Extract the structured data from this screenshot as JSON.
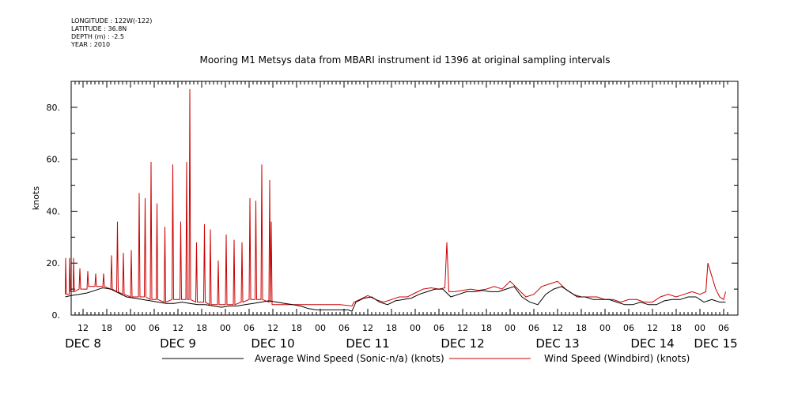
{
  "meta": {
    "longitude": "LONGITUDE : 122W(-122)",
    "latitude": "LATITUDE : 36.8N",
    "depth": "DEPTH (m) : -2.5",
    "year": "YEAR : 2010"
  },
  "colors": {
    "average": "#000000",
    "windbird": "#cc0000"
  },
  "chart_data": {
    "type": "line",
    "title": "Mooring M1 Metsys data from MBARI instrument id 1396 at original sampling intervals",
    "ylabel": "knots",
    "xlabel": "",
    "ylim": [
      0,
      90
    ],
    "yticks": [
      0,
      20,
      40,
      60,
      80
    ],
    "ytick_labels": [
      "0.",
      "20.",
      "40.",
      "60.",
      "80."
    ],
    "xlim_hours": [
      7,
      174
    ],
    "xticks": [
      {
        "h": 12,
        "label": "12"
      },
      {
        "h": 18,
        "label": "18"
      },
      {
        "h": 24,
        "label": "00"
      },
      {
        "h": 30,
        "label": "06"
      },
      {
        "h": 36,
        "label": "12"
      },
      {
        "h": 42,
        "label": "18"
      },
      {
        "h": 48,
        "label": "00"
      },
      {
        "h": 54,
        "label": "06"
      },
      {
        "h": 60,
        "label": "12"
      },
      {
        "h": 66,
        "label": "18"
      },
      {
        "h": 72,
        "label": "00"
      },
      {
        "h": 78,
        "label": "06"
      },
      {
        "h": 84,
        "label": "12"
      },
      {
        "h": 90,
        "label": "18"
      },
      {
        "h": 96,
        "label": "00"
      },
      {
        "h": 102,
        "label": "06"
      },
      {
        "h": 108,
        "label": "12"
      },
      {
        "h": 114,
        "label": "18"
      },
      {
        "h": 120,
        "label": "00"
      },
      {
        "h": 126,
        "label": "06"
      },
      {
        "h": 132,
        "label": "12"
      },
      {
        "h": 138,
        "label": "18"
      },
      {
        "h": 144,
        "label": "00"
      },
      {
        "h": 150,
        "label": "06"
      },
      {
        "h": 156,
        "label": "12"
      },
      {
        "h": 162,
        "label": "18"
      },
      {
        "h": 168,
        "label": "00"
      },
      {
        "h": 174,
        "label": "06"
      }
    ],
    "day_labels": [
      {
        "h": 12,
        "label": "DEC  8"
      },
      {
        "h": 36,
        "label": "DEC  9"
      },
      {
        "h": 60,
        "label": "DEC 10"
      },
      {
        "h": 84,
        "label": "DEC 11"
      },
      {
        "h": 108,
        "label": "DEC 12"
      },
      {
        "h": 132,
        "label": "DEC 13"
      },
      {
        "h": 156,
        "label": "DEC 14"
      },
      {
        "h": 180,
        "label": "DEC 15"
      }
    ],
    "series": [
      {
        "name": "Average Wind Speed (Sonic-n/a) (knots)",
        "points": [
          [
            7.5,
            7
          ],
          [
            9,
            7.5
          ],
          [
            11,
            8
          ],
          [
            13,
            8.5
          ],
          [
            15,
            9.5
          ],
          [
            17,
            10.5
          ],
          [
            19,
            10
          ],
          [
            21,
            8.5
          ],
          [
            23,
            7
          ],
          [
            25,
            6.5
          ],
          [
            27,
            6
          ],
          [
            29,
            5.5
          ],
          [
            31,
            5
          ],
          [
            33,
            4.5
          ],
          [
            35,
            4.5
          ],
          [
            37,
            5
          ],
          [
            39,
            4.5
          ],
          [
            41,
            4
          ],
          [
            43,
            4
          ],
          [
            45,
            3.5
          ],
          [
            47,
            3
          ],
          [
            49,
            3.5
          ],
          [
            51,
            3.5
          ],
          [
            53,
            4
          ],
          [
            55,
            4.5
          ],
          [
            57,
            5
          ],
          [
            59,
            5.5
          ],
          [
            61,
            5
          ],
          [
            63,
            4.5
          ],
          [
            65,
            4
          ],
          [
            67,
            3.5
          ],
          [
            69,
            2.5
          ],
          [
            71,
            2
          ],
          [
            73,
            2
          ],
          [
            75,
            2
          ],
          [
            77,
            2
          ],
          [
            79,
            2
          ],
          [
            80,
            1.5
          ],
          [
            81,
            5
          ],
          [
            83,
            6.5
          ],
          [
            85,
            7
          ],
          [
            87,
            5
          ],
          [
            89,
            4
          ],
          [
            91,
            5.5
          ],
          [
            93,
            6
          ],
          [
            95,
            6.5
          ],
          [
            97,
            8
          ],
          [
            99,
            9
          ],
          [
            101,
            10
          ],
          [
            103,
            10
          ],
          [
            105,
            7
          ],
          [
            107,
            8
          ],
          [
            109,
            9
          ],
          [
            111,
            9
          ],
          [
            113,
            9.5
          ],
          [
            115,
            9
          ],
          [
            117,
            9
          ],
          [
            119,
            10
          ],
          [
            121,
            11
          ],
          [
            123,
            7
          ],
          [
            125,
            5
          ],
          [
            127,
            4
          ],
          [
            129,
            8
          ],
          [
            131,
            10
          ],
          [
            133,
            11
          ],
          [
            135,
            9
          ],
          [
            137,
            7
          ],
          [
            139,
            7
          ],
          [
            141,
            6
          ],
          [
            143,
            6
          ],
          [
            145,
            6
          ],
          [
            147,
            5
          ],
          [
            149,
            4
          ],
          [
            151,
            4
          ],
          [
            153,
            5
          ],
          [
            155,
            4
          ],
          [
            157,
            4
          ],
          [
            159,
            5.5
          ],
          [
            161,
            6
          ],
          [
            163,
            6
          ],
          [
            165,
            7
          ],
          [
            167,
            7
          ],
          [
            169,
            5
          ],
          [
            171,
            6
          ],
          [
            173,
            5
          ],
          [
            174.5,
            5
          ]
        ]
      },
      {
        "name": "Wind Speed (Windbird) (knots)",
        "points": [
          [
            7.5,
            8
          ],
          [
            7.6,
            22
          ],
          [
            7.8,
            8
          ],
          [
            8.5,
            8
          ],
          [
            8.6,
            22
          ],
          [
            8.8,
            9
          ],
          [
            9.5,
            9
          ],
          [
            9.6,
            22
          ],
          [
            9.8,
            9
          ],
          [
            11,
            10
          ],
          [
            11.2,
            18
          ],
          [
            11.4,
            10
          ],
          [
            13,
            10
          ],
          [
            13.2,
            17
          ],
          [
            13.4,
            11
          ],
          [
            15,
            11
          ],
          [
            15.2,
            16
          ],
          [
            15.4,
            11
          ],
          [
            17,
            11
          ],
          [
            17.2,
            16
          ],
          [
            17.4,
            11
          ],
          [
            19,
            10
          ],
          [
            19.2,
            23
          ],
          [
            19.4,
            10
          ],
          [
            20.5,
            9
          ],
          [
            20.7,
            36
          ],
          [
            20.9,
            9
          ],
          [
            22,
            8
          ],
          [
            22.2,
            24
          ],
          [
            22.4,
            8
          ],
          [
            24,
            7
          ],
          [
            24.2,
            25
          ],
          [
            24.4,
            7
          ],
          [
            26,
            7
          ],
          [
            26.2,
            47
          ],
          [
            26.4,
            7
          ],
          [
            27.5,
            7
          ],
          [
            27.7,
            45
          ],
          [
            27.9,
            7
          ],
          [
            29,
            6
          ],
          [
            29.2,
            59
          ],
          [
            29.4,
            6
          ],
          [
            30.5,
            6
          ],
          [
            30.7,
            43
          ],
          [
            30.9,
            6
          ],
          [
            32.5,
            5
          ],
          [
            32.7,
            34
          ],
          [
            32.9,
            5
          ],
          [
            34.5,
            6
          ],
          [
            34.7,
            58
          ],
          [
            34.9,
            6
          ],
          [
            36.5,
            6
          ],
          [
            36.7,
            36
          ],
          [
            36.9,
            6
          ],
          [
            38,
            6
          ],
          [
            38.2,
            59
          ],
          [
            38.4,
            6
          ],
          [
            38.8,
            6
          ],
          [
            39,
            87
          ],
          [
            39.2,
            6
          ],
          [
            40.5,
            5
          ],
          [
            40.7,
            28
          ],
          [
            40.9,
            5
          ],
          [
            42.5,
            5
          ],
          [
            42.7,
            35
          ],
          [
            42.9,
            5
          ],
          [
            44,
            4
          ],
          [
            44.2,
            33
          ],
          [
            44.4,
            4
          ],
          [
            46,
            4
          ],
          [
            46.2,
            21
          ],
          [
            46.4,
            4
          ],
          [
            48,
            4
          ],
          [
            48.2,
            31
          ],
          [
            48.4,
            4
          ],
          [
            50,
            4
          ],
          [
            50.2,
            29
          ],
          [
            50.4,
            4
          ],
          [
            52,
            5
          ],
          [
            52.2,
            28
          ],
          [
            52.4,
            5
          ],
          [
            54,
            6
          ],
          [
            54.2,
            45
          ],
          [
            54.4,
            6
          ],
          [
            55.5,
            6
          ],
          [
            55.7,
            44
          ],
          [
            55.9,
            6
          ],
          [
            57,
            6
          ],
          [
            57.2,
            58
          ],
          [
            57.4,
            6
          ],
          [
            59,
            5
          ],
          [
            59.2,
            52
          ],
          [
            59.4,
            5
          ],
          [
            59.6,
            36
          ],
          [
            59.8,
            4
          ],
          [
            61,
            4
          ],
          [
            65,
            4
          ],
          [
            69,
            4
          ],
          [
            73,
            4
          ],
          [
            77,
            4
          ],
          [
            80,
            3.5
          ],
          [
            80.5,
            5
          ],
          [
            82,
            6
          ],
          [
            84,
            7.5
          ],
          [
            86,
            6
          ],
          [
            88,
            5
          ],
          [
            90,
            6
          ],
          [
            92,
            7
          ],
          [
            94,
            7
          ],
          [
            96,
            8.5
          ],
          [
            98,
            10
          ],
          [
            100,
            10.5
          ],
          [
            102,
            10
          ],
          [
            103.5,
            10.5
          ],
          [
            104,
            28
          ],
          [
            104.5,
            9
          ],
          [
            106,
            9
          ],
          [
            108,
            9.5
          ],
          [
            110,
            10
          ],
          [
            112,
            9.5
          ],
          [
            114,
            10
          ],
          [
            116,
            11
          ],
          [
            118,
            10
          ],
          [
            120,
            13
          ],
          [
            122,
            10
          ],
          [
            124,
            7
          ],
          [
            126,
            8
          ],
          [
            128,
            11
          ],
          [
            130,
            12
          ],
          [
            132,
            13
          ],
          [
            134,
            10
          ],
          [
            136,
            8
          ],
          [
            138,
            7
          ],
          [
            140,
            7
          ],
          [
            142,
            7
          ],
          [
            144,
            6
          ],
          [
            146,
            6
          ],
          [
            148,
            5
          ],
          [
            150,
            6
          ],
          [
            152,
            6
          ],
          [
            154,
            5
          ],
          [
            156,
            5
          ],
          [
            158,
            7
          ],
          [
            160,
            8
          ],
          [
            162,
            7
          ],
          [
            164,
            8
          ],
          [
            166,
            9
          ],
          [
            168,
            8
          ],
          [
            169.5,
            9
          ],
          [
            170,
            20
          ],
          [
            171,
            15
          ],
          [
            172,
            10
          ],
          [
            173,
            7
          ],
          [
            174,
            6
          ],
          [
            174.5,
            9
          ]
        ]
      }
    ]
  }
}
